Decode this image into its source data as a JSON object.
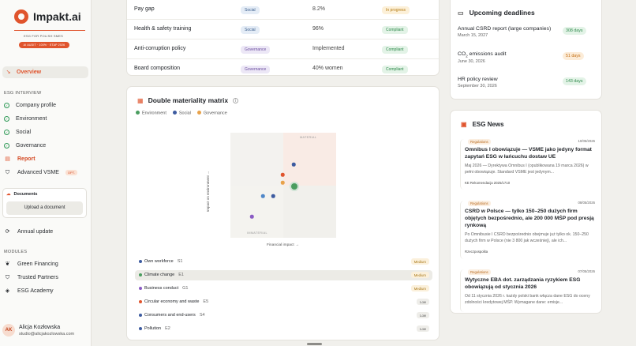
{
  "sidebar": {
    "brand": "Impakt.ai",
    "tagline": "ESG FOR POLISH SMES",
    "badge": "AI AUDIT · 100% · ETAP 2026",
    "overview": "Overview",
    "section_interview": "ESG INTERVIEW",
    "items": [
      {
        "label": "Company profile"
      },
      {
        "label": "Environment"
      },
      {
        "label": "Social"
      },
      {
        "label": "Governance"
      },
      {
        "label": "Report"
      },
      {
        "label": "Advanced VSME",
        "tag": "OPT."
      }
    ],
    "documents": {
      "title": "Documents",
      "button": "Upload a document"
    },
    "annual": "Annual update",
    "section_modules": "MODULES",
    "modules": [
      {
        "label": "Green Financing"
      },
      {
        "label": "Trusted Partners"
      },
      {
        "label": "ESG Academy"
      }
    ],
    "user": {
      "initials": "AK",
      "name": "Alicja Kozłowska",
      "email": "studio@alicjakozlowska.com"
    }
  },
  "indicators": [
    {
      "name": "Pay gap",
      "category": "Social",
      "value": "8.2%",
      "status": "In progress"
    },
    {
      "name": "Health & safety training",
      "category": "Social",
      "value": "96%",
      "status": "Compliant"
    },
    {
      "name": "Anti-corruption policy",
      "category": "Governance",
      "value": "Implemented",
      "status": "Compliant"
    },
    {
      "name": "Board composition",
      "category": "Governance",
      "value": "40% women",
      "status": "Compliant"
    }
  ],
  "matrix": {
    "title": "Double materiality matrix",
    "legend": [
      "Environment",
      "Social",
      "Governance"
    ],
    "label_material": "MATERIAL",
    "label_immaterial": "IMMATERIAL",
    "x_axis": "Financial impact →",
    "y_axis": "Impact on environment →",
    "colors": {
      "environment": "#4a9d5f",
      "social": "#3d5ba0",
      "governance": "#8a5bc4",
      "highlight": "#e0542d"
    },
    "categories": [
      {
        "name": "Own workforce",
        "code": "S1",
        "priority": "Medium",
        "group": "social"
      },
      {
        "name": "Climate change",
        "code": "E1",
        "priority": "Medium",
        "group": "environment"
      },
      {
        "name": "Business conduct",
        "code": "G1",
        "priority": "Medium",
        "group": "governance"
      },
      {
        "name": "Circular economy and waste",
        "code": "E5",
        "priority": "Low",
        "group": "environment"
      },
      {
        "name": "Consumers and end-users",
        "code": "S4",
        "priority": "Low",
        "group": "social"
      },
      {
        "name": "Pollution",
        "code": "E2",
        "priority": "Low",
        "group": "environment"
      }
    ]
  },
  "deadlines": {
    "title": "Upcoming deadlines",
    "items": [
      {
        "name": "Annual CSRD report (large companies)",
        "date": "March 15, 2027",
        "days": "308 days",
        "tone": "green"
      },
      {
        "name": "CO",
        "sub": "2",
        "name_rest": " emissions audit",
        "date": "June 30, 2026",
        "days": "51 days",
        "tone": "orange"
      },
      {
        "name": "HR policy review",
        "date": "September 30, 2026",
        "days": "143 days",
        "tone": "green"
      }
    ]
  },
  "news": {
    "title": "ESG News",
    "items": [
      {
        "tag": "Regulations",
        "date": "10/05/2026",
        "title": "Omnibus I obowiązuje — VSME jako jedyny format zapytań ESG w łańcuchu dostaw UE",
        "body": "Maj 2026 — Dyrektywa Omnibus I (opublikowana 19 marca 2026) w pełni obowiązuje. Standard VSME jest jedynym...",
        "source": "KE Rekomendacja 2025/1710"
      },
      {
        "tag": "Regulations",
        "date": "08/05/2026",
        "title": "CSRD w Polsce — tylko 150–250 dużych firm objętych bezpośrednio, ale 200 000 MŚP pod presją rynkową",
        "body": "Po Omnibusie I CSRD bezpośrednio obejmuje już tylko ok. 150–250 dużych firm w Polsce (nie 3 800 jak wcześniej), ale ich...",
        "source": "Rzeczpospolita"
      },
      {
        "tag": "Regulations",
        "date": "07/05/2026",
        "title": "Wytyczne EBA dot. zarządzania ryzykiem ESG obowiązują od stycznia 2026",
        "body": "Od 11 stycznia 2026 r. każdy polski bank włącza dane ESG do oceny zdolności kredytowej MŚP. Wymagane dane: emisje...",
        "source": ""
      }
    ]
  }
}
